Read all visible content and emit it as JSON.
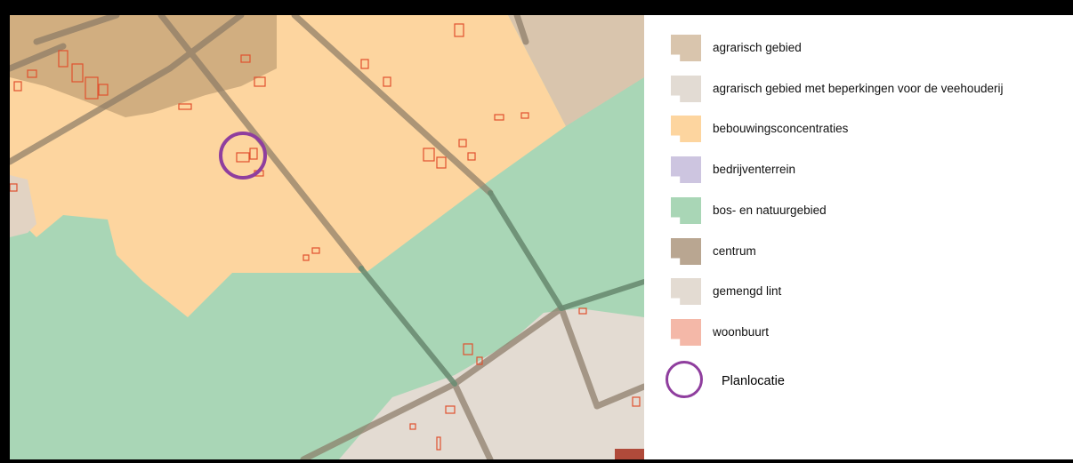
{
  "legend": {
    "items": [
      {
        "label": "agrarisch gebied",
        "color": "#d9c5ad"
      },
      {
        "label": "agrarisch gebied met beperkingen voor de veehouderij",
        "color": "#e2dbd3"
      },
      {
        "label": "bebouwingsconcentraties",
        "color": "#fdd59f"
      },
      {
        "label": "bedrijventerrein",
        "color": "#cdc5e0"
      },
      {
        "label": "bos- en natuurgebied",
        "color": "#a9d6b6"
      },
      {
        "label": "centrum",
        "color": "#b9a691"
      },
      {
        "label": "gemengd lint",
        "color": "#e3dbd2"
      },
      {
        "label": "woonbuurt",
        "color": "#f4b8a8"
      }
    ],
    "planlocatie": {
      "label": "Planlocatie",
      "color": "#8f3e9e"
    }
  },
  "map_colors": {
    "roads": "#8a7a66",
    "roads_green": "#6a8c72",
    "buildings": "#e0502e"
  }
}
